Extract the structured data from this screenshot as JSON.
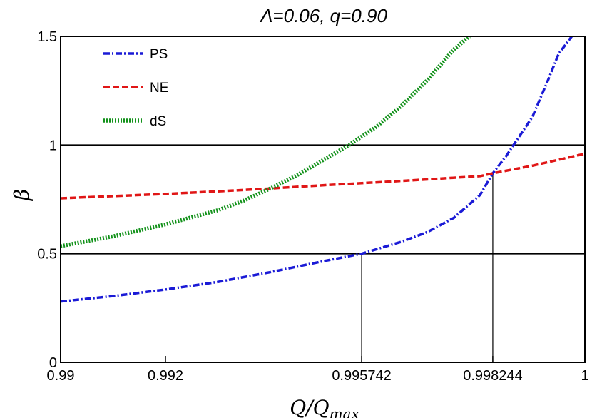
{
  "chart_data": {
    "type": "line",
    "title": "Λ=0.06, q=0.90",
    "xlabel": "Q/Q",
    "xlabel_sub": "max",
    "ylabel": "β",
    "xlim": [
      0.99,
      1.0
    ],
    "ylim": [
      0,
      1.5
    ],
    "x_ticks": [
      0.99,
      0.992,
      0.995742,
      0.998244,
      1.0
    ],
    "x_tick_labels": [
      "0.99",
      "0.992",
      "0.995742",
      "0.998244",
      "1"
    ],
    "y_ticks": [
      0,
      0.5,
      1,
      1.5
    ],
    "y_tick_labels": [
      "0",
      "0.5",
      "1",
      "1.5"
    ],
    "grid": false,
    "legend_position": "top-left",
    "reference_lines": {
      "horizontal": [
        0.5,
        1.0
      ],
      "vertical": [
        {
          "x": 0.995742,
          "y": 0.5
        },
        {
          "x": 0.998244,
          "y": 0.87
        }
      ]
    },
    "series": [
      {
        "name": "PS",
        "color": "#1a1ad6",
        "style": "dash-dot",
        "x": [
          0.99,
          0.991,
          0.992,
          0.993,
          0.994,
          0.995,
          0.995742,
          0.9965,
          0.997,
          0.9975,
          0.998,
          0.998244,
          0.9985,
          0.999,
          0.9993,
          0.9995,
          0.99975
        ],
        "y": [
          0.28,
          0.305,
          0.335,
          0.37,
          0.415,
          0.465,
          0.5,
          0.555,
          0.6,
          0.665,
          0.77,
          0.87,
          0.95,
          1.13,
          1.3,
          1.42,
          1.5
        ]
      },
      {
        "name": "NE",
        "color": "#e01616",
        "style": "dashed",
        "x": [
          0.99,
          0.991,
          0.992,
          0.993,
          0.994,
          0.995,
          0.996,
          0.997,
          0.998,
          0.998244,
          0.999,
          1.0
        ],
        "y": [
          0.755,
          0.765,
          0.775,
          0.787,
          0.8,
          0.815,
          0.828,
          0.842,
          0.857,
          0.87,
          0.905,
          0.96
        ]
      },
      {
        "name": "dS",
        "color": "#13921b",
        "style": "dotted",
        "x": [
          0.99,
          0.991,
          0.992,
          0.993,
          0.9935,
          0.994,
          0.9945,
          0.995,
          0.9955,
          0.996,
          0.9965,
          0.997,
          0.9975,
          0.9978
        ],
        "y": [
          0.535,
          0.58,
          0.635,
          0.7,
          0.745,
          0.8,
          0.86,
          0.93,
          1.0,
          1.08,
          1.18,
          1.3,
          1.44,
          1.5
        ]
      }
    ]
  }
}
